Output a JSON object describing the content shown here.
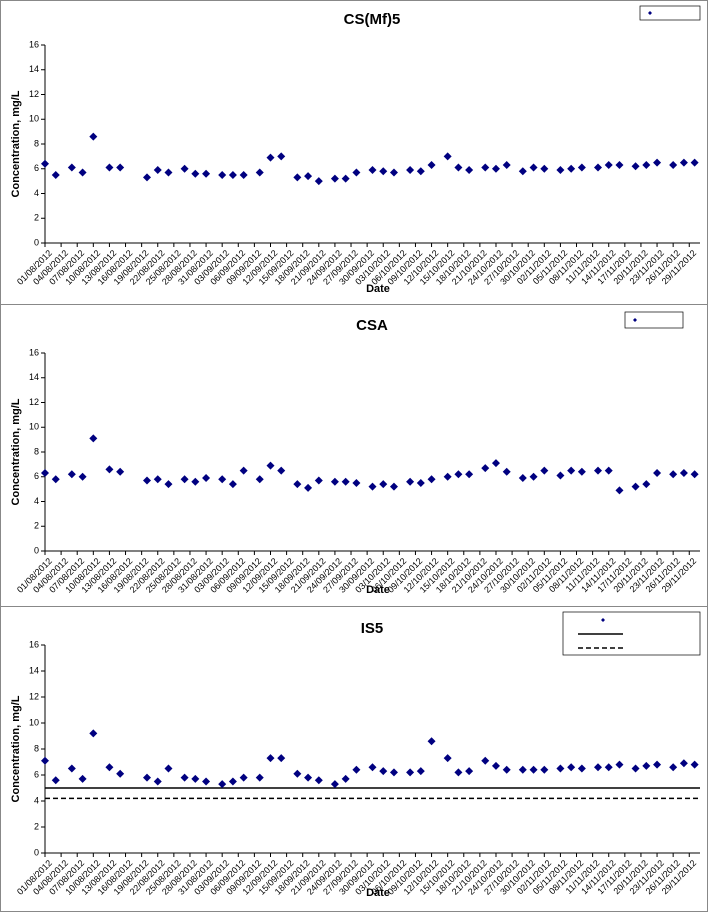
{
  "chart_data": [
    {
      "type": "scatter",
      "title": "CS(Mf)5",
      "x_label": "Date",
      "y_label": "Concentration, mg/L",
      "ylim": [
        0,
        16
      ],
      "yticks": [
        0,
        2,
        4,
        6,
        8,
        10,
        12,
        14,
        16
      ],
      "xlim": [
        "01/08/2012",
        "01/12/2012"
      ],
      "xticks": [
        "01/08/2012",
        "04/08/2012",
        "07/08/2012",
        "10/08/2012",
        "13/08/2012",
        "16/08/2012",
        "19/08/2012",
        "22/08/2012",
        "25/08/2012",
        "28/08/2012",
        "31/08/2012",
        "03/09/2012",
        "06/09/2012",
        "09/09/2012",
        "12/09/2012",
        "15/09/2012",
        "18/09/2012",
        "21/09/2012",
        "24/09/2012",
        "27/09/2012",
        "30/09/2012",
        "03/10/2012",
        "06/10/2012",
        "09/10/2012",
        "12/10/2012",
        "15/10/2012",
        "18/10/2012",
        "21/10/2012",
        "24/10/2012",
        "27/10/2012",
        "30/10/2012",
        "02/11/2012",
        "05/11/2012",
        "08/11/2012",
        "11/11/2012",
        "14/11/2012",
        "17/11/2012",
        "20/11/2012",
        "23/11/2012",
        "26/11/2012",
        "29/11/2012"
      ],
      "x": [
        "01/08/2012",
        "03/08/2012",
        "06/08/2012",
        "08/08/2012",
        "10/08/2012",
        "13/08/2012",
        "15/08/2012",
        "20/08/2012",
        "22/08/2012",
        "24/08/2012",
        "27/08/2012",
        "29/08/2012",
        "31/08/2012",
        "03/09/2012",
        "05/09/2012",
        "07/09/2012",
        "10/09/2012",
        "12/09/2012",
        "14/09/2012",
        "17/09/2012",
        "19/09/2012",
        "21/09/2012",
        "24/09/2012",
        "26/09/2012",
        "28/09/2012",
        "01/10/2012",
        "03/10/2012",
        "05/10/2012",
        "08/10/2012",
        "10/10/2012",
        "12/10/2012",
        "15/10/2012",
        "17/10/2012",
        "19/10/2012",
        "22/10/2012",
        "24/10/2012",
        "26/10/2012",
        "29/10/2012",
        "31/10/2012",
        "02/11/2012",
        "05/11/2012",
        "07/11/2012",
        "09/11/2012",
        "12/11/2012",
        "14/11/2012",
        "16/11/2012",
        "19/11/2012",
        "21/11/2012",
        "23/11/2012",
        "26/11/2012",
        "28/11/2012",
        "30/11/2012"
      ],
      "series": [
        {
          "color": "#000080",
          "values": [
            6.4,
            5.5,
            6.1,
            5.7,
            8.6,
            6.1,
            6.1,
            5.3,
            5.9,
            5.7,
            6.0,
            5.6,
            5.6,
            5.5,
            5.5,
            5.5,
            5.7,
            6.9,
            7.0,
            5.3,
            5.4,
            5.0,
            5.2,
            5.2,
            5.7,
            5.9,
            5.8,
            5.7,
            5.9,
            5.8,
            6.3,
            7.0,
            6.1,
            5.9,
            6.1,
            6.0,
            6.3,
            5.8,
            6.1,
            6.0,
            5.9,
            6.0,
            6.1,
            6.1,
            6.3,
            6.3,
            6.2,
            6.3,
            6.5,
            6.3,
            6.5,
            6.5
          ]
        }
      ]
    },
    {
      "type": "scatter",
      "title": "CSA",
      "x_label": "Date",
      "y_label": "Concentration, mg/L",
      "ylim": [
        0,
        16
      ],
      "yticks": [
        0,
        2,
        4,
        6,
        8,
        10,
        12,
        14,
        16
      ],
      "xlim": [
        "01/08/2012",
        "01/12/2012"
      ],
      "xticks": [
        "01/08/2012",
        "04/08/2012",
        "07/08/2012",
        "10/08/2012",
        "13/08/2012",
        "16/08/2012",
        "19/08/2012",
        "22/08/2012",
        "25/08/2012",
        "28/08/2012",
        "31/08/2012",
        "03/09/2012",
        "06/09/2012",
        "09/09/2012",
        "12/09/2012",
        "15/09/2012",
        "18/09/2012",
        "21/09/2012",
        "24/09/2012",
        "27/09/2012",
        "30/09/2012",
        "03/10/2012",
        "06/10/2012",
        "09/10/2012",
        "12/10/2012",
        "15/10/2012",
        "18/10/2012",
        "21/10/2012",
        "24/10/2012",
        "27/10/2012",
        "30/10/2012",
        "02/11/2012",
        "05/11/2012",
        "08/11/2012",
        "11/11/2012",
        "14/11/2012",
        "17/11/2012",
        "20/11/2012",
        "23/11/2012",
        "26/11/2012",
        "29/11/2012"
      ],
      "x": [
        "01/08/2012",
        "03/08/2012",
        "06/08/2012",
        "08/08/2012",
        "10/08/2012",
        "13/08/2012",
        "15/08/2012",
        "20/08/2012",
        "22/08/2012",
        "24/08/2012",
        "27/08/2012",
        "29/08/2012",
        "31/08/2012",
        "03/09/2012",
        "05/09/2012",
        "07/09/2012",
        "10/09/2012",
        "12/09/2012",
        "14/09/2012",
        "17/09/2012",
        "19/09/2012",
        "21/09/2012",
        "24/09/2012",
        "26/09/2012",
        "28/09/2012",
        "01/10/2012",
        "03/10/2012",
        "05/10/2012",
        "08/10/2012",
        "10/10/2012",
        "12/10/2012",
        "15/10/2012",
        "17/10/2012",
        "19/10/2012",
        "22/10/2012",
        "24/10/2012",
        "26/10/2012",
        "29/10/2012",
        "31/10/2012",
        "02/11/2012",
        "05/11/2012",
        "07/11/2012",
        "09/11/2012",
        "12/11/2012",
        "14/11/2012",
        "16/11/2012",
        "19/11/2012",
        "21/11/2012",
        "23/11/2012",
        "26/11/2012",
        "28/11/2012",
        "30/11/2012"
      ],
      "series": [
        {
          "color": "#000080",
          "values": [
            6.3,
            5.8,
            6.2,
            6.0,
            9.1,
            6.6,
            6.4,
            5.7,
            5.8,
            5.4,
            5.8,
            5.6,
            5.9,
            5.8,
            5.4,
            6.5,
            5.8,
            6.9,
            6.5,
            5.4,
            5.1,
            5.7,
            5.6,
            5.6,
            5.5,
            5.2,
            5.4,
            5.2,
            5.6,
            5.5,
            5.8,
            6.0,
            6.2,
            6.2,
            6.7,
            7.1,
            6.4,
            5.9,
            6.0,
            6.5,
            6.1,
            6.5,
            6.4,
            6.5,
            6.5,
            4.9,
            5.2,
            5.4,
            6.3,
            6.2,
            6.3,
            6.2
          ]
        }
      ]
    },
    {
      "type": "scatter",
      "title": "IS5",
      "x_label": "Date",
      "y_label": "Concentration, mg/L",
      "ylim": [
        0,
        16
      ],
      "yticks": [
        0,
        2,
        4,
        6,
        8,
        10,
        12,
        14,
        16
      ],
      "xlim": [
        "01/08/2012",
        "01/12/2012"
      ],
      "xticks": [
        "01/08/2012",
        "04/08/2012",
        "07/08/2012",
        "10/08/2012",
        "13/08/2012",
        "16/08/2012",
        "19/08/2012",
        "22/08/2012",
        "25/08/2012",
        "28/08/2012",
        "31/08/2012",
        "03/09/2012",
        "06/09/2012",
        "09/09/2012",
        "12/09/2012",
        "15/09/2012",
        "18/09/2012",
        "21/09/2012",
        "24/09/2012",
        "27/09/2012",
        "30/09/2012",
        "03/10/2012",
        "06/10/2012",
        "09/10/2012",
        "12/10/2012",
        "15/10/2012",
        "18/10/2012",
        "21/10/2012",
        "24/10/2012",
        "27/10/2012",
        "30/10/2012",
        "02/11/2012",
        "05/11/2012",
        "08/11/2012",
        "11/11/2012",
        "14/11/2012",
        "17/11/2012",
        "20/11/2012",
        "23/11/2012",
        "26/11/2012",
        "29/11/2012"
      ],
      "x": [
        "01/08/2012",
        "03/08/2012",
        "06/08/2012",
        "08/08/2012",
        "10/08/2012",
        "13/08/2012",
        "15/08/2012",
        "20/08/2012",
        "22/08/2012",
        "24/08/2012",
        "27/08/2012",
        "29/08/2012",
        "31/08/2012",
        "03/09/2012",
        "05/09/2012",
        "07/09/2012",
        "10/09/2012",
        "12/09/2012",
        "14/09/2012",
        "17/09/2012",
        "19/09/2012",
        "21/09/2012",
        "24/09/2012",
        "26/09/2012",
        "28/09/2012",
        "01/10/2012",
        "03/10/2012",
        "05/10/2012",
        "08/10/2012",
        "10/10/2012",
        "12/10/2012",
        "15/10/2012",
        "17/10/2012",
        "19/10/2012",
        "22/10/2012",
        "24/10/2012",
        "26/10/2012",
        "29/10/2012",
        "31/10/2012",
        "02/11/2012",
        "05/11/2012",
        "07/11/2012",
        "09/11/2012",
        "12/11/2012",
        "14/11/2012",
        "16/11/2012",
        "19/11/2012",
        "21/11/2012",
        "23/11/2012",
        "26/11/2012",
        "28/11/2012",
        "30/11/2012"
      ],
      "series": [
        {
          "color": "#000080",
          "values": [
            7.1,
            5.6,
            6.5,
            5.7,
            9.2,
            6.6,
            6.1,
            5.8,
            5.5,
            6.5,
            5.8,
            5.7,
            5.5,
            5.3,
            5.5,
            5.8,
            5.8,
            7.3,
            7.3,
            6.1,
            5.8,
            5.6,
            5.3,
            5.7,
            6.4,
            6.6,
            6.3,
            6.2,
            6.2,
            6.3,
            8.6,
            7.3,
            6.2,
            6.3,
            7.1,
            6.7,
            6.4,
            6.4,
            6.4,
            6.4,
            6.5,
            6.6,
            6.5,
            6.6,
            6.6,
            6.8,
            6.5,
            6.7,
            6.8,
            6.6,
            6.9,
            6.8
          ]
        }
      ],
      "reference_lines": [
        {
          "value": 5,
          "style": "solid",
          "color": "#000000"
        },
        {
          "value": 4.2,
          "style": "dashed",
          "color": "#000000"
        }
      ]
    }
  ]
}
